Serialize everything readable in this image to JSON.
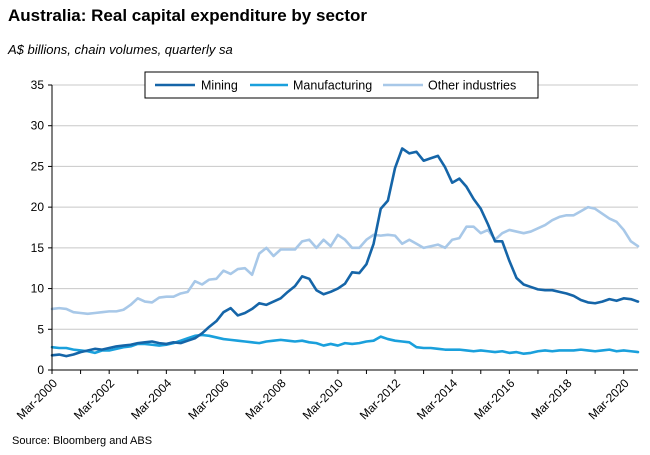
{
  "chart_data": {
    "type": "line",
    "title": "Australia: Real capital expenditure by sector",
    "subtitle": "A$ billions, chain volumes, quarterly sa",
    "source": "Source: Bloomberg and ABS",
    "ylim": [
      0,
      35
    ],
    "y_ticks": [
      0,
      5,
      10,
      15,
      20,
      25,
      30,
      35
    ],
    "x_tick_labels": [
      "Mar-2000",
      "Mar-2002",
      "Mar-2004",
      "Mar-2006",
      "Mar-2008",
      "Mar-2010",
      "Mar-2012",
      "Mar-2014",
      "Mar-2016",
      "Mar-2018",
      "Mar-2020"
    ],
    "x_tick_every": 8,
    "grid": "horizontal",
    "legend_position": "top",
    "series": [
      {
        "name": "Mining",
        "color": "#1565a8",
        "values": [
          1.8,
          1.9,
          1.7,
          1.9,
          2.2,
          2.4,
          2.6,
          2.5,
          2.7,
          2.9,
          3.0,
          3.1,
          3.3,
          3.4,
          3.5,
          3.3,
          3.2,
          3.4,
          3.3,
          3.6,
          3.9,
          4.5,
          5.3,
          6.0,
          7.1,
          7.6,
          6.7,
          7.0,
          7.5,
          8.2,
          8.0,
          8.4,
          8.8,
          9.6,
          10.3,
          11.5,
          11.2,
          9.8,
          9.3,
          9.6,
          10.0,
          10.6,
          12.0,
          11.9,
          13.0,
          15.5,
          19.8,
          20.8,
          24.8,
          27.2,
          26.6,
          26.8,
          25.7,
          26.0,
          26.3,
          24.9,
          23.0,
          23.5,
          22.5,
          21.0,
          19.8,
          17.9,
          15.8,
          15.8,
          13.4,
          11.3,
          10.5,
          10.2,
          9.9,
          9.8,
          9.8,
          9.6,
          9.4,
          9.1,
          8.6,
          8.3,
          8.2,
          8.4,
          8.7,
          8.5,
          8.8,
          8.7,
          8.4
        ]
      },
      {
        "name": "Manufacturing",
        "color": "#1aa0dc",
        "values": [
          2.8,
          2.7,
          2.7,
          2.5,
          2.4,
          2.3,
          2.1,
          2.4,
          2.4,
          2.6,
          2.8,
          2.9,
          3.2,
          3.2,
          3.1,
          3.0,
          3.1,
          3.3,
          3.6,
          3.9,
          4.2,
          4.3,
          4.2,
          4.0,
          3.8,
          3.7,
          3.6,
          3.5,
          3.4,
          3.3,
          3.5,
          3.6,
          3.7,
          3.6,
          3.5,
          3.6,
          3.4,
          3.3,
          3.0,
          3.2,
          3.0,
          3.3,
          3.2,
          3.3,
          3.5,
          3.6,
          4.1,
          3.8,
          3.6,
          3.5,
          3.4,
          2.8,
          2.7,
          2.7,
          2.6,
          2.5,
          2.5,
          2.5,
          2.4,
          2.3,
          2.4,
          2.3,
          2.2,
          2.3,
          2.1,
          2.2,
          2.0,
          2.1,
          2.3,
          2.4,
          2.3,
          2.4,
          2.4,
          2.4,
          2.5,
          2.4,
          2.3,
          2.4,
          2.5,
          2.3,
          2.4,
          2.3,
          2.2
        ]
      },
      {
        "name": "Other industries",
        "color": "#a8c8e8",
        "values": [
          7.5,
          7.6,
          7.5,
          7.1,
          7.0,
          6.9,
          7.0,
          7.1,
          7.2,
          7.2,
          7.4,
          8.0,
          8.8,
          8.4,
          8.3,
          8.9,
          9.0,
          9.0,
          9.4,
          9.6,
          10.9,
          10.5,
          11.1,
          11.2,
          12.2,
          11.8,
          12.4,
          12.5,
          11.7,
          14.3,
          15.0,
          14.0,
          14.8,
          14.8,
          14.8,
          15.8,
          16.0,
          15.0,
          16.0,
          15.2,
          16.6,
          16.0,
          15.0,
          15.0,
          16.0,
          16.6,
          16.5,
          16.6,
          16.5,
          15.5,
          16.0,
          15.5,
          15.0,
          15.2,
          15.4,
          15.0,
          16.0,
          16.2,
          17.6,
          17.6,
          16.8,
          17.2,
          16.0,
          16.8,
          17.2,
          17.0,
          16.8,
          17.0,
          17.4,
          17.8,
          18.4,
          18.8,
          19.0,
          19.0,
          19.5,
          20.0,
          19.8,
          19.2,
          18.6,
          18.2,
          17.2,
          15.8,
          15.2
        ]
      }
    ]
  }
}
